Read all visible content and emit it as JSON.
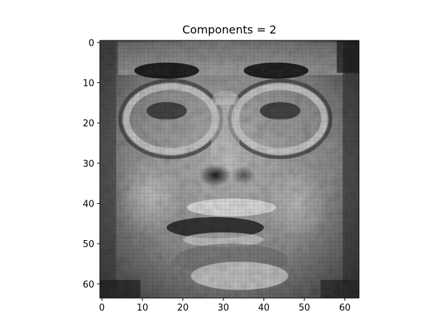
{
  "chart_data": {
    "type": "heatmap",
    "title": "Components =  2",
    "colormap": "gray",
    "image_shape": [
      64,
      64
    ],
    "xlim": [
      -0.5,
      63.5
    ],
    "ylim": [
      63.5,
      -0.5
    ],
    "x_ticks": [
      0,
      10,
      20,
      30,
      40,
      50,
      60
    ],
    "x_tick_labels": [
      "0",
      "10",
      "20",
      "30",
      "40",
      "50",
      "60"
    ],
    "y_ticks": [
      0,
      10,
      20,
      30,
      40,
      50,
      60
    ],
    "y_tick_labels": [
      "0",
      "10",
      "20",
      "30",
      "40",
      "50",
      "60"
    ],
    "xlabel": "",
    "ylabel": "",
    "content": "grayscale reconstruction of a face wearing glasses (64x64 pixels)"
  }
}
